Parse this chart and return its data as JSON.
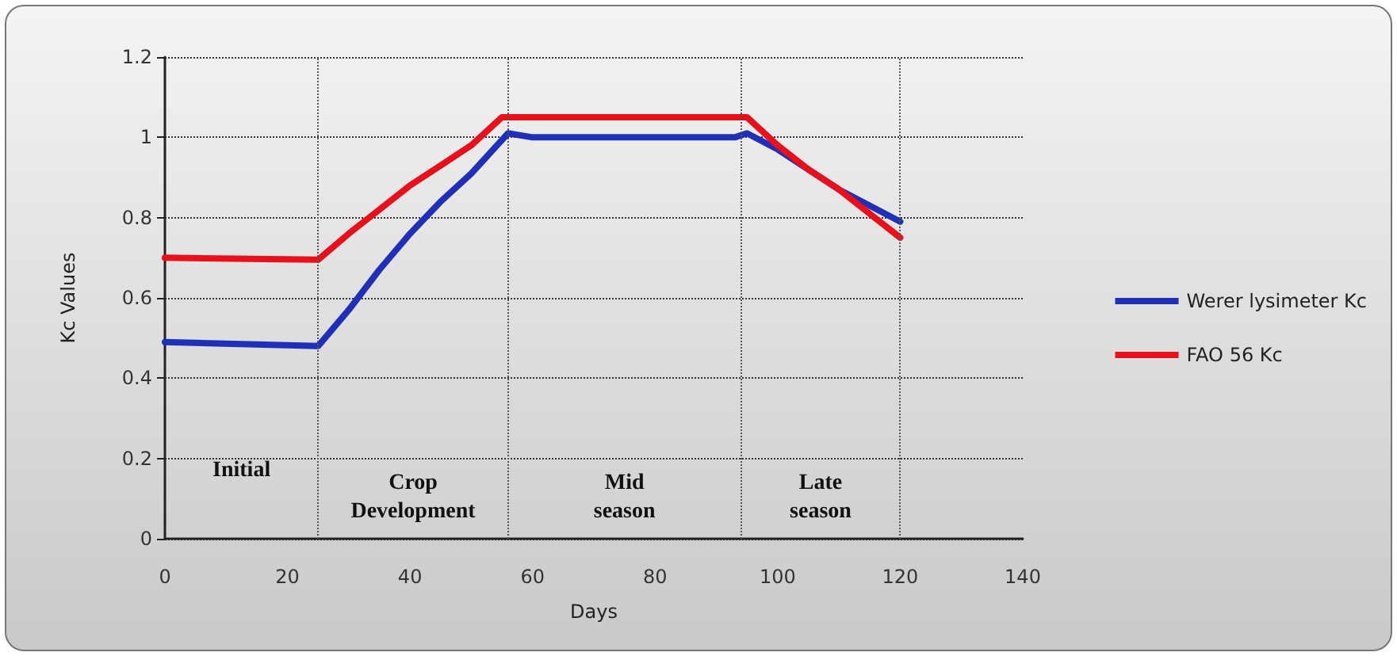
{
  "chart_data": {
    "type": "line",
    "xlabel": "Days",
    "ylabel": "Kc Values",
    "series": [
      {
        "name": "Werer lysimeter Kc",
        "color": "#1f2fb8",
        "x": [
          0,
          25,
          30,
          35,
          40,
          45,
          50,
          56,
          60,
          93,
          95,
          100,
          105,
          110,
          115,
          120
        ],
        "values": [
          0.49,
          0.48,
          0.57,
          0.67,
          0.76,
          0.84,
          0.91,
          1.01,
          1.0,
          1.0,
          1.01,
          0.97,
          0.92,
          0.87,
          0.83,
          0.79
        ]
      },
      {
        "name": "FAO 56 Kc",
        "color": "#e8101a",
        "x": [
          0,
          25,
          30,
          35,
          40,
          45,
          50,
          55,
          60,
          95,
          100,
          105,
          110,
          115,
          120
        ],
        "values": [
          0.7,
          0.695,
          0.76,
          0.82,
          0.88,
          0.93,
          0.98,
          1.05,
          1.05,
          1.05,
          0.98,
          0.92,
          0.87,
          0.81,
          0.75
        ]
      }
    ],
    "xlim": [
      0,
      140
    ],
    "xticks": [
      0,
      20,
      40,
      60,
      80,
      100,
      120,
      140
    ],
    "ylim": [
      0,
      1.2
    ],
    "yticks": [
      0,
      0.2,
      0.4,
      0.6,
      0.8,
      1,
      1.2
    ],
    "grid": "y",
    "legend": "right",
    "marker": "none",
    "line_style": "solid",
    "ref_lines": [
      {
        "axis": "x",
        "value": 25,
        "color": "#555555",
        "line_style": "dotted"
      },
      {
        "axis": "x",
        "value": 56,
        "color": "#555555",
        "line_style": "dotted"
      },
      {
        "axis": "x",
        "value": 94,
        "color": "#555555",
        "line_style": "dotted"
      },
      {
        "axis": "x",
        "value": 120,
        "color": "#555555",
        "line_style": "dotted"
      }
    ],
    "annotations": [
      "Initial",
      "Crop\nDevelopment",
      "Mid\nseason",
      "Late\nseason"
    ]
  }
}
